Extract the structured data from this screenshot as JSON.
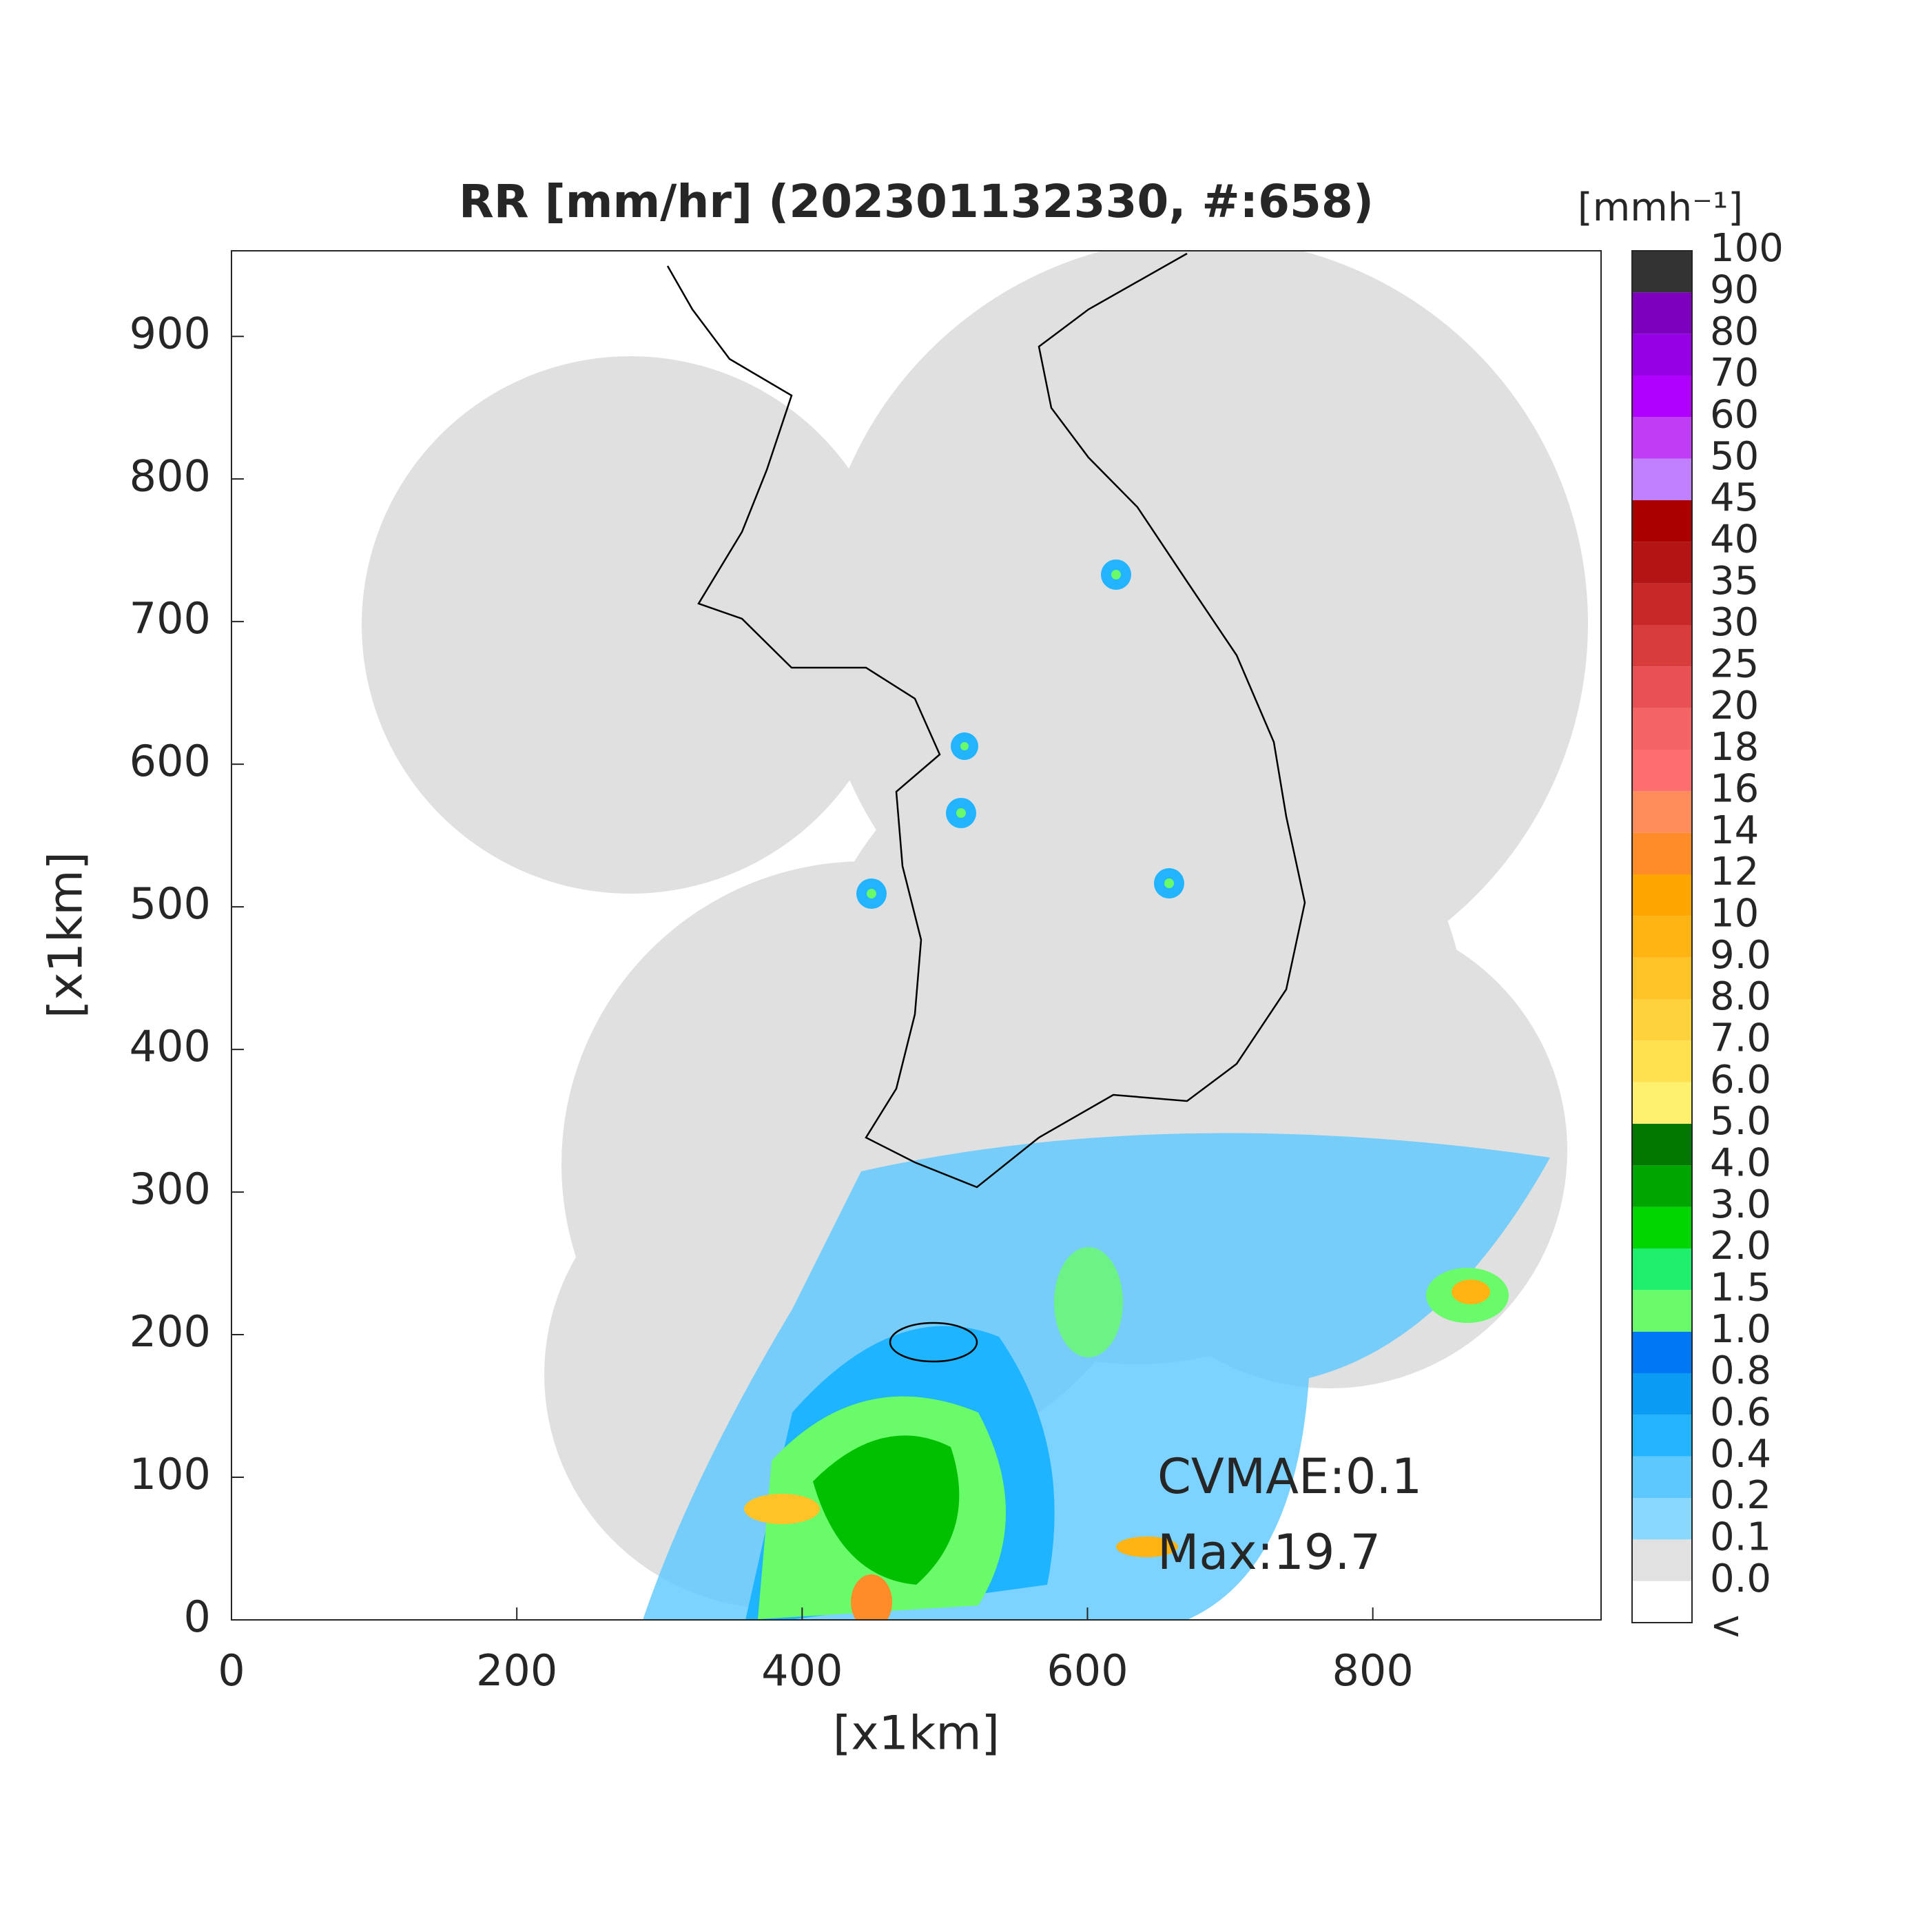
{
  "chart_data": {
    "type": "radar-map",
    "title": "RR [mm/hr] (202301132330, #:658)",
    "xlabel": "[x1km]",
    "ylabel": "[x1km]",
    "xlim": [
      0,
      960
    ],
    "ylim": [
      0,
      960
    ],
    "xticks": [
      0,
      200,
      400,
      600,
      800
    ],
    "yticks": [
      0,
      100,
      200,
      300,
      400,
      500,
      600,
      700,
      800,
      900
    ],
    "annotations": [
      "CVMAE:0.1",
      "Max:19.7"
    ],
    "colorbar": {
      "title": "[mmh⁻¹]",
      "labels": [
        "<",
        "0.0",
        "0.1",
        "0.2",
        "0.4",
        "0.6",
        "0.8",
        "1.0",
        "1.5",
        "2.0",
        "3.0",
        "4.0",
        "5.0",
        "6.0",
        "7.0",
        "8.0",
        "9.0",
        "10",
        "12",
        "14",
        "16",
        "18",
        "20",
        "25",
        "30",
        "35",
        "40",
        "45",
        "50",
        "60",
        "70",
        "80",
        "90",
        "100"
      ],
      "colors": [
        "#ffffff",
        "#e1e1e1",
        "#88d8ff",
        "#5cc8ff",
        "#22b4ff",
        "#0a9bf5",
        "#0078f5",
        "#6afb6a",
        "#1ef06e",
        "#00d500",
        "#00a500",
        "#007800",
        "#fff06e",
        "#ffe150",
        "#ffd23c",
        "#ffc328",
        "#ffb414",
        "#ffa500",
        "#ff8c28",
        "#ff8c5a",
        "#ff6e6e",
        "#f56464",
        "#e85055",
        "#d83c3c",
        "#c82828",
        "#b41414",
        "#aa0000",
        "#c080ff",
        "#c03cf5",
        "#b000ff",
        "#9600e6",
        "#7d00bf",
        "#333333"
      ]
    }
  }
}
